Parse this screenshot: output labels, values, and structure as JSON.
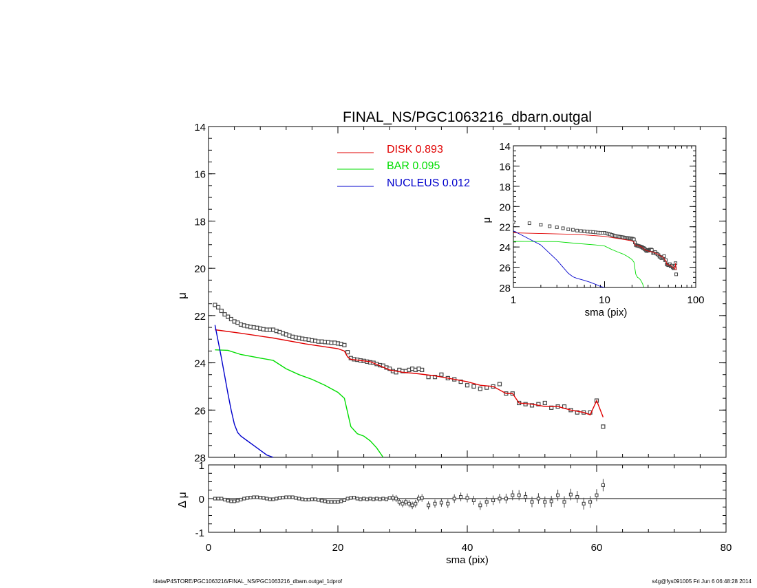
{
  "colors": {
    "axis": "#000000",
    "disk": "#e00000",
    "bar": "#00dd00",
    "nucleus": "#0000cc",
    "data": "#444444"
  },
  "footer": {
    "left": "/data/P4STORE/PGC1063216/FINAL_NS/PGC1063216_dbarn.outgal_1dprof",
    "right": "s4g@fys091005  Fri Jun  6 06:48:28 2014"
  },
  "chart_data": [
    {
      "id": "main",
      "type": "line",
      "title": "FINAL_NS/PGC1063216_dbarn.outgal",
      "xlabel": "",
      "ylabel": "μ",
      "xlim": [
        0,
        80
      ],
      "ylim": [
        28,
        14
      ],
      "yticks": [
        14,
        16,
        18,
        20,
        22,
        24,
        26,
        28
      ],
      "xticks": [
        0,
        20,
        40,
        60,
        80
      ],
      "show_xtick_labels": false,
      "legend": {
        "placement": "top-center",
        "entries": [
          {
            "name": "DISK",
            "value": "0.893",
            "color": "#e00000"
          },
          {
            "name": "BAR",
            "value": "0.095",
            "color": "#00dd00"
          },
          {
            "name": "NUCLEUS",
            "value": "0.012",
            "color": "#0000cc"
          }
        ]
      },
      "observed": {
        "x": [
          1,
          1.5,
          2,
          2.5,
          3,
          3.5,
          4,
          4.5,
          5,
          5.5,
          6,
          6.5,
          7,
          7.5,
          8,
          8.5,
          9,
          9.5,
          10,
          10.5,
          11,
          11.5,
          12,
          12.5,
          13,
          13.5,
          14,
          14.5,
          15,
          15.5,
          16,
          16.5,
          17,
          17.5,
          18,
          18.5,
          19,
          19.5,
          20,
          20.5,
          21,
          21.5,
          22,
          22.5,
          23,
          23.5,
          24,
          24.5,
          25,
          25.5,
          26,
          26.5,
          27,
          27.5,
          28,
          28.5,
          29,
          29.5,
          30,
          30.5,
          31,
          31.5,
          32,
          32.5,
          33,
          34,
          35,
          36,
          37,
          38,
          39,
          40,
          41,
          42,
          43,
          44,
          45,
          46,
          47,
          48,
          49,
          50,
          51,
          52,
          53,
          54,
          55,
          56,
          57,
          58,
          59,
          60,
          61
        ],
        "y": [
          21.55,
          21.65,
          21.8,
          21.95,
          22.05,
          22.15,
          22.25,
          22.3,
          22.38,
          22.42,
          22.45,
          22.48,
          22.5,
          22.52,
          22.55,
          22.58,
          22.6,
          22.6,
          22.6,
          22.65,
          22.7,
          22.75,
          22.8,
          22.85,
          22.9,
          22.93,
          22.95,
          22.98,
          23.0,
          23.02,
          23.05,
          23.07,
          23.1,
          23.1,
          23.12,
          23.13,
          23.15,
          23.15,
          23.18,
          23.2,
          23.25,
          23.55,
          23.8,
          23.85,
          23.87,
          23.9,
          23.92,
          23.95,
          23.98,
          24.0,
          24.05,
          24.1,
          24.12,
          24.2,
          24.25,
          24.35,
          24.4,
          24.3,
          24.35,
          24.35,
          24.3,
          24.25,
          24.3,
          24.25,
          24.3,
          24.6,
          24.6,
          24.5,
          24.65,
          24.7,
          24.8,
          24.95,
          25.0,
          25.1,
          25.05,
          25.0,
          24.9,
          25.3,
          25.3,
          25.7,
          25.75,
          25.8,
          25.75,
          25.7,
          25.9,
          25.85,
          25.85,
          26.0,
          26.1,
          26.1,
          26.1,
          25.6,
          26.7
        ]
      },
      "series": [
        {
          "name": "DISK",
          "color": "#e00000",
          "x": [
            1,
            5,
            10,
            15,
            20,
            21,
            21.5,
            22,
            25,
            28,
            30,
            32,
            35,
            38,
            40,
            42,
            44,
            46,
            47,
            48,
            50,
            52,
            54,
            56,
            58,
            59,
            60,
            61
          ],
          "y": [
            22.6,
            22.75,
            22.95,
            23.2,
            23.4,
            23.5,
            23.75,
            23.85,
            23.95,
            24.3,
            24.4,
            24.45,
            24.55,
            24.7,
            24.8,
            24.95,
            25.0,
            25.3,
            25.3,
            25.7,
            25.75,
            25.85,
            25.85,
            26.0,
            26.1,
            26.2,
            25.6,
            26.3
          ]
        },
        {
          "name": "BAR",
          "color": "#00dd00",
          "x": [
            1,
            3,
            5,
            8,
            10,
            12,
            14,
            16,
            18,
            20,
            21,
            21.5,
            22,
            23,
            24,
            25,
            26,
            27
          ],
          "y": [
            23.45,
            23.47,
            23.65,
            23.8,
            23.9,
            24.25,
            24.5,
            24.7,
            24.95,
            25.25,
            25.5,
            26.1,
            26.7,
            27.0,
            27.1,
            27.3,
            27.6,
            28.0
          ]
        },
        {
          "name": "NUCLEUS",
          "color": "#0000cc",
          "x": [
            1,
            2,
            3,
            3.5,
            4,
            4.5,
            5,
            6,
            7,
            8,
            9,
            10
          ],
          "y": [
            22.4,
            23.8,
            25.3,
            26.0,
            26.6,
            26.95,
            27.1,
            27.3,
            27.5,
            27.7,
            27.9,
            28.0
          ]
        }
      ]
    },
    {
      "id": "inset",
      "type": "line",
      "xlabel": "sma (pix)",
      "ylabel": "μ",
      "xscale": "log",
      "xlim": [
        1,
        100
      ],
      "ylim": [
        28,
        14
      ],
      "xticks": [
        1,
        10,
        100
      ],
      "yticks": [
        14,
        16,
        18,
        20,
        22,
        24,
        26,
        28
      ]
    },
    {
      "id": "residuals",
      "type": "scatter",
      "xlabel": "sma (pix)",
      "ylabel": "Δ μ",
      "xlim": [
        0,
        80
      ],
      "ylim": [
        -1,
        1
      ],
      "xticks": [
        0,
        20,
        40,
        60,
        80
      ],
      "yticks": [
        -1,
        0,
        1
      ],
      "x": [
        1,
        1.5,
        2,
        2.5,
        3,
        3.5,
        4,
        4.5,
        5,
        5.5,
        6,
        6.5,
        7,
        7.5,
        8,
        8.5,
        9,
        9.5,
        10,
        10.5,
        11,
        11.5,
        12,
        12.5,
        13,
        13.5,
        14,
        14.5,
        15,
        15.5,
        16,
        16.5,
        17,
        17.5,
        18,
        18.5,
        19,
        19.5,
        20,
        20.5,
        21,
        21.5,
        22,
        22.5,
        23,
        23.5,
        24,
        24.5,
        25,
        25.5,
        26,
        26.5,
        27,
        27.5,
        28,
        28.5,
        29,
        29.5,
        30,
        30.5,
        31,
        31.5,
        32,
        32.5,
        33,
        34,
        35,
        36,
        37,
        38,
        39,
        40,
        41,
        42,
        43,
        44,
        45,
        46,
        47,
        48,
        49,
        50,
        51,
        52,
        53,
        54,
        55,
        56,
        57,
        58,
        59,
        60,
        61
      ],
      "y": [
        0.0,
        0.0,
        0.0,
        -0.03,
        -0.06,
        -0.08,
        -0.08,
        -0.06,
        -0.03,
        0.0,
        0.02,
        0.03,
        0.04,
        0.04,
        0.03,
        0.02,
        0.0,
        -0.02,
        -0.02,
        0.0,
        0.02,
        0.03,
        0.04,
        0.04,
        0.04,
        0.02,
        0.0,
        -0.02,
        -0.03,
        -0.03,
        -0.02,
        -0.02,
        -0.04,
        -0.06,
        -0.08,
        -0.1,
        -0.1,
        -0.1,
        -0.1,
        -0.08,
        -0.05,
        0.0,
        0.02,
        0.03,
        0.0,
        -0.02,
        0.0,
        -0.02,
        0.0,
        -0.02,
        0.0,
        -0.02,
        0.0,
        -0.02,
        0.02,
        0.02,
        0.0,
        -0.1,
        -0.15,
        -0.1,
        -0.15,
        -0.2,
        -0.15,
        0.0,
        0.02,
        -0.2,
        -0.15,
        -0.12,
        -0.15,
        0.0,
        0.05,
        0.02,
        -0.05,
        -0.2,
        -0.1,
        -0.05,
        0.0,
        0.0,
        0.1,
        0.1,
        0.05,
        -0.1,
        0.0,
        -0.1,
        -0.08,
        0.1,
        -0.1,
        0.12,
        0.05,
        -0.15,
        -0.1,
        0.1,
        0.4
      ]
    }
  ]
}
